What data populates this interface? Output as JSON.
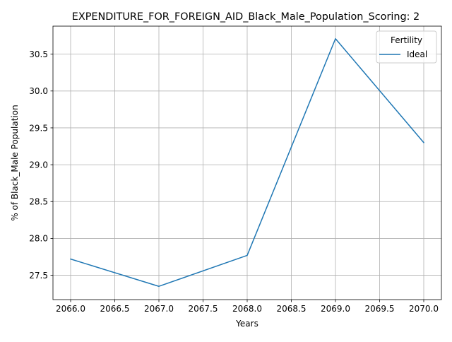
{
  "chart_data": {
    "type": "line",
    "title": "EXPENDITURE_FOR_FOREIGN_AID_Black_Male_Population_Scoring: 2",
    "xlabel": "Years",
    "ylabel": "% of Black_Male Population",
    "x": [
      2066,
      2067,
      2068,
      2069,
      2070
    ],
    "series": [
      {
        "name": "Ideal",
        "color": "#1f77b4",
        "values": [
          27.72,
          27.35,
          27.77,
          30.71,
          29.3
        ]
      }
    ],
    "xlim": [
      2065.8,
      2070.2
    ],
    "ylim": [
      27.17,
      30.88
    ],
    "x_ticks": [
      2066.0,
      2066.5,
      2067.0,
      2067.5,
      2068.0,
      2068.5,
      2069.0,
      2069.5,
      2070.0
    ],
    "x_tick_labels": [
      "2066.0",
      "2066.5",
      "2067.0",
      "2067.5",
      "2068.0",
      "2068.5",
      "2069.0",
      "2069.5",
      "2070.0"
    ],
    "y_ticks": [
      27.5,
      28.0,
      28.5,
      29.0,
      29.5,
      30.0,
      30.5
    ],
    "y_tick_labels": [
      "27.5",
      "28.0",
      "28.5",
      "29.0",
      "29.5",
      "30.0",
      "30.5"
    ],
    "grid": true,
    "legend": {
      "title": "Fertility",
      "placement": "top-right"
    }
  }
}
